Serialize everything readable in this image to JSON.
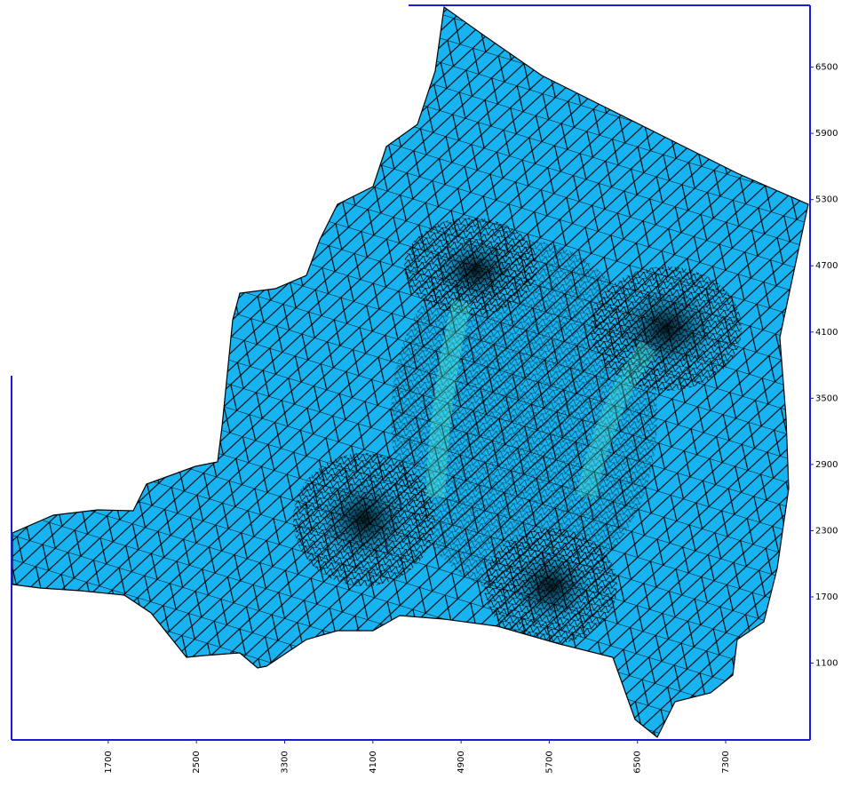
{
  "chart_data": {
    "type": "mesh",
    "color": "#18b4f2",
    "xlim": [
      823,
      8065
    ],
    "xticks": [
      1700,
      2500,
      3300,
      4100,
      4900,
      5700,
      6500,
      7300
    ],
    "ylim": [
      404,
      7060
    ],
    "yticks": [
      1100,
      1700,
      2300,
      2900,
      3500,
      4100,
      4700,
      5300,
      5900,
      6500
    ]
  }
}
